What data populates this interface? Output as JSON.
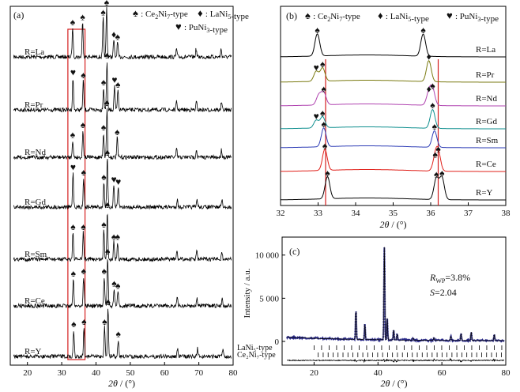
{
  "marker_symbols": {
    "spade": "♠",
    "diamond": "♦",
    "heart": "♥"
  },
  "colors": {
    "highlight_box": "#d42020",
    "refline": "#d42020",
    "obs": "#2a2a8a",
    "calc": "#000000",
    "diff": "#000000",
    "panel_b": [
      "#000000",
      "#7a7a10",
      "#b044b0",
      "#0f8f8f",
      "#2e3db6",
      "#e0201a",
      "#000000"
    ]
  },
  "chart_data": [
    {
      "type": "line",
      "panel_label": "(a)",
      "xlabel": "2θ / (°)",
      "ylabel": "",
      "xlim": [
        15,
        80
      ],
      "x_ticks": [
        20,
        30,
        40,
        50,
        60,
        70,
        80
      ],
      "grid": false,
      "legend": [
        {
          "symbol": "spade",
          "prefix": ": Ce",
          "sub1": "2",
          "mid": "Ni",
          "sub2": "7",
          "suffix": "-type"
        },
        {
          "symbol": "diamond",
          "prefix": ": LaNi",
          "sub1": "5",
          "mid": "",
          "sub2": "",
          "suffix": "-type"
        },
        {
          "symbol": "heart",
          "prefix": ": PuNi",
          "sub1": "3",
          "mid": "",
          "sub2": "",
          "suffix": "-type"
        }
      ],
      "highlight_range_2theta": [
        31.8,
        36.8
      ],
      "series": [
        {
          "name": "R=La",
          "label": "R=La",
          "peaks": [
            [
              33.2,
              0.6,
              "spade"
            ],
            [
              36.1,
              0.7,
              "spade"
            ],
            [
              42.1,
              0.8,
              "spade"
            ],
            [
              43.1,
              1.0,
              "spade"
            ],
            [
              45.2,
              0.35,
              "diamond"
            ],
            [
              46.3,
              0.3,
              "spade"
            ],
            [
              63.5,
              0.16,
              ""
            ],
            [
              69.2,
              0.16,
              ""
            ],
            [
              76.5,
              0.16,
              ""
            ]
          ]
        },
        {
          "name": "R=Pr",
          "label": "R=Pr",
          "peaks": [
            [
              33.3,
              0.65,
              "heart"
            ],
            [
              36.3,
              0.6,
              "spade"
            ],
            [
              42.2,
              0.45,
              "spade"
            ],
            [
              43.2,
              1.0,
              "spade"
            ],
            [
              45.4,
              0.5,
              "heart"
            ],
            [
              46.4,
              0.4,
              "spade"
            ],
            [
              63.5,
              0.16,
              ""
            ],
            [
              69.3,
              0.16,
              ""
            ],
            [
              76.6,
              0.16,
              ""
            ]
          ]
        },
        {
          "name": "R=Nd",
          "label": "R=Nd",
          "peaks": [
            [
              33.2,
              0.35,
              "spade"
            ],
            [
              36.2,
              0.55,
              "spade"
            ],
            [
              42.2,
              0.5,
              "spade"
            ],
            [
              43.2,
              1.0,
              "spade"
            ],
            [
              46.2,
              0.4,
              "spade"
            ],
            [
              63.5,
              0.16,
              ""
            ],
            [
              69.3,
              0.16,
              ""
            ],
            [
              76.6,
              0.16,
              ""
            ]
          ]
        },
        {
          "name": "R=Gd",
          "label": "R=Gd",
          "peaks": [
            [
              33.3,
              0.7,
              "heart"
            ],
            [
              36.4,
              0.6,
              "spade"
            ],
            [
              42.3,
              0.5,
              "spade"
            ],
            [
              43.3,
              1.0,
              "spade"
            ],
            [
              45.2,
              0.45,
              "heart"
            ],
            [
              46.5,
              0.4,
              "heart"
            ],
            [
              63.7,
              0.16,
              ""
            ],
            [
              69.5,
              0.16,
              ""
            ],
            [
              76.7,
              0.16,
              ""
            ]
          ]
        },
        {
          "name": "R=Sm",
          "label": "R=Sm",
          "peaks": [
            [
              33.3,
              0.55,
              "spade"
            ],
            [
              36.3,
              0.55,
              "spade"
            ],
            [
              42.3,
              0.6,
              "spade"
            ],
            [
              43.3,
              1.0,
              "spade"
            ],
            [
              45.2,
              0.35,
              "spade"
            ],
            [
              46.3,
              0.35,
              "spade"
            ],
            [
              63.6,
              0.16,
              ""
            ],
            [
              69.4,
              0.16,
              ""
            ],
            [
              76.7,
              0.16,
              ""
            ]
          ]
        },
        {
          "name": "R=Ce",
          "label": "R=Ce",
          "peaks": [
            [
              33.4,
              0.55,
              "spade"
            ],
            [
              36.4,
              0.6,
              "spade"
            ],
            [
              42.4,
              0.6,
              "spade"
            ],
            [
              43.4,
              1.0,
              "spade"
            ],
            [
              45.3,
              0.35,
              "spade"
            ],
            [
              46.4,
              0.3,
              "spade"
            ],
            [
              63.7,
              0.16,
              ""
            ],
            [
              69.5,
              0.16,
              ""
            ],
            [
              76.8,
              0.16,
              ""
            ]
          ]
        },
        {
          "name": "R=Y",
          "label": "R=Y",
          "peaks": [
            [
              33.5,
              0.55,
              "spade"
            ],
            [
              36.5,
              0.6,
              "spade"
            ],
            [
              42.5,
              0.6,
              "spade"
            ],
            [
              43.5,
              1.0,
              "spade"
            ],
            [
              46.5,
              0.35,
              "spade"
            ],
            [
              63.8,
              0.16,
              ""
            ],
            [
              69.6,
              0.16,
              ""
            ],
            [
              77.0,
              0.16,
              ""
            ]
          ]
        }
      ]
    },
    {
      "type": "line",
      "panel_label": "(b)",
      "xlabel": "2θ / (°)",
      "ylabel": "",
      "xlim": [
        32,
        38
      ],
      "x_ticks": [
        32,
        33,
        34,
        35,
        36,
        37,
        38
      ],
      "grid": false,
      "legend": [
        {
          "symbol": "spade",
          "prefix": ": Ce",
          "sub1": "2",
          "mid": "Ni",
          "sub2": "7",
          "suffix": "-type"
        },
        {
          "symbol": "diamond",
          "prefix": ": LaNi",
          "sub1": "5",
          "mid": "",
          "sub2": "",
          "suffix": "-type"
        },
        {
          "symbol": "heart",
          "prefix": ": PuNi",
          "sub1": "3",
          "mid": "",
          "sub2": "",
          "suffix": "-type"
        }
      ],
      "ref_lines_2theta": [
        33.2,
        36.2
      ],
      "series": [
        {
          "name": "R=La",
          "label": "R=La",
          "peaks": [
            [
              32.98,
              1.0,
              "spade"
            ],
            [
              35.8,
              1.0,
              "spade"
            ]
          ]
        },
        {
          "name": "R=Pr",
          "label": "R=Pr",
          "peaks": [
            [
              32.95,
              0.45,
              "heart"
            ],
            [
              33.12,
              0.6,
              "spade"
            ],
            [
              35.95,
              0.95,
              "diamond"
            ]
          ]
        },
        {
          "name": "R=Nd",
          "label": "R=Nd",
          "peaks": [
            [
              33.02,
              0.45,
              ""
            ],
            [
              33.15,
              0.55,
              "spade"
            ],
            [
              35.95,
              0.55,
              "diamond"
            ],
            [
              36.05,
              0.7,
              "spade"
            ]
          ]
        },
        {
          "name": "R=Gd",
          "label": "R=Gd",
          "peaks": [
            [
              32.95,
              0.35,
              "heart"
            ],
            [
              33.12,
              0.5,
              "spade"
            ],
            [
              36.05,
              0.85,
              "spade"
            ]
          ]
        },
        {
          "name": "R=Sm",
          "label": "R=Sm",
          "peaks": [
            [
              33.15,
              0.85,
              "spade"
            ],
            [
              36.1,
              0.75,
              "spade"
            ]
          ]
        },
        {
          "name": "R=Ce",
          "label": "R=Ce",
          "peaks": [
            [
              33.18,
              0.95,
              "spade"
            ],
            [
              36.12,
              0.55,
              "spade"
            ],
            [
              36.2,
              0.8,
              "spade"
            ]
          ]
        },
        {
          "name": "R=Y",
          "label": "R=Y",
          "peaks": [
            [
              33.25,
              1.0,
              "spade"
            ],
            [
              36.15,
              0.95,
              "spade"
            ],
            [
              36.3,
              1.0,
              "spade"
            ]
          ]
        }
      ]
    },
    {
      "type": "line",
      "panel_label": "(c)",
      "xlabel": "2θ / (°)",
      "ylabel": "Intensity / a.u.",
      "xlim": [
        10,
        80
      ],
      "ylim": [
        -1500,
        11000
      ],
      "x_ticks": [
        20,
        40,
        60,
        80
      ],
      "y_ticks": [
        0,
        5000,
        10000
      ],
      "y_tick_labels": [
        "0",
        "5 000",
        "10 000"
      ],
      "grid": false,
      "stats": {
        "rwp_value": "=3.8%",
        "s_value": "=2.04"
      },
      "phase_rows": [
        "LaNi₅-type",
        "Ce₂Ni₇-type"
      ],
      "series": [
        {
          "name": "observed",
          "baseline": 450,
          "peaks": [
            [
              33.1,
              3400
            ],
            [
              35.9,
              1800
            ],
            [
              42.0,
              10800
            ],
            [
              42.9,
              2500
            ],
            [
              44.9,
              1200
            ],
            [
              46.0,
              700
            ],
            [
              51.0,
              250
            ],
            [
              57.5,
              300
            ],
            [
              62.8,
              500
            ],
            [
              66.0,
              800
            ],
            [
              69.2,
              1000
            ],
            [
              76.4,
              700
            ]
          ]
        }
      ]
    }
  ]
}
